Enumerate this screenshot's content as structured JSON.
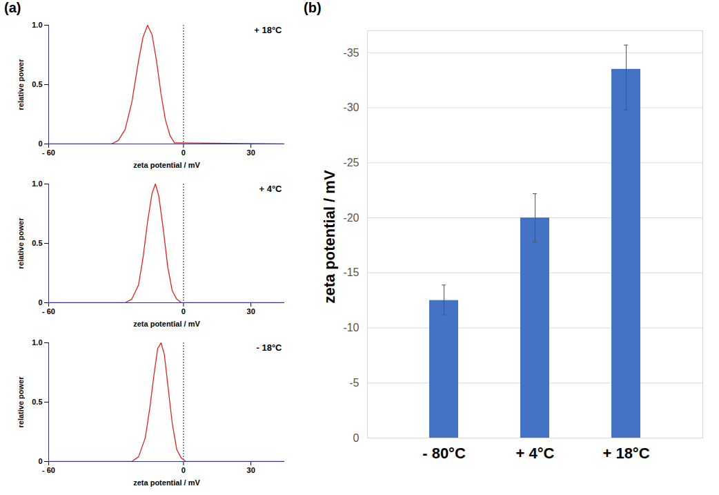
{
  "chart_data": [
    {
      "type": "line",
      "panel_label": "(a)",
      "annotation": "+ 18°C",
      "x_label": "zeta potential / mV",
      "y_label": "relative power",
      "x": [
        -60,
        -32,
        -29,
        -26,
        -23,
        -20,
        -18,
        -16,
        -14,
        -12,
        -10,
        -8,
        -6,
        -4,
        45
      ],
      "values": [
        0,
        0,
        0.03,
        0.12,
        0.35,
        0.7,
        0.9,
        1.0,
        0.92,
        0.7,
        0.42,
        0.2,
        0.07,
        0.01,
        0
      ],
      "color": "#e02020",
      "rule_x": 0,
      "xlim": [
        -60,
        45
      ],
      "xticks": [
        {
          "value": -60,
          "label": "- 60"
        },
        0,
        30
      ],
      "ylim": [
        0,
        1
      ],
      "yticks": [
        0,
        0.5,
        {
          "value": 1,
          "label": "1.0"
        }
      ]
    },
    {
      "type": "line",
      "annotation": "+ 4°C",
      "x_label": "zeta potential / mV",
      "y_label": "relative power",
      "x": [
        -60,
        -26,
        -23,
        -20,
        -18,
        -16,
        -14,
        -12.5,
        -11,
        -9,
        -7,
        -5,
        -3,
        -1,
        45
      ],
      "values": [
        0,
        0,
        0.03,
        0.15,
        0.38,
        0.68,
        0.92,
        1.0,
        0.9,
        0.62,
        0.3,
        0.1,
        0.03,
        0,
        0
      ],
      "color": "#e02020",
      "rule_x": 0,
      "xlim": [
        -60,
        45
      ],
      "xticks": [
        {
          "value": -60,
          "label": "- 60"
        },
        0,
        30
      ],
      "ylim": [
        0,
        1
      ],
      "yticks": [
        0,
        0.5,
        {
          "value": 1,
          "label": "1.0"
        }
      ]
    },
    {
      "type": "line",
      "annotation": "- 18°C",
      "x_label": "zeta potential / mV",
      "y_label": "relative power",
      "x": [
        -60,
        -23,
        -20,
        -17,
        -15,
        -13,
        -11.5,
        -10,
        -8.5,
        -7,
        -5,
        -3,
        -1,
        1,
        45
      ],
      "values": [
        0,
        0,
        0.04,
        0.2,
        0.45,
        0.75,
        0.95,
        1.0,
        0.9,
        0.65,
        0.32,
        0.1,
        0.03,
        0,
        0
      ],
      "color": "#e02020",
      "rule_x": 0,
      "xlim": [
        -60,
        45
      ],
      "xticks": [
        {
          "value": -60,
          "label": "- 60"
        },
        0,
        30
      ],
      "ylim": [
        0,
        1
      ],
      "yticks": [
        0,
        0.5,
        {
          "value": 1,
          "label": "1.0"
        }
      ]
    },
    {
      "type": "bar",
      "panel_label": "(b)",
      "y_label": "zeta potential / mV",
      "categories": [
        "- 80°C",
        "+ 4°C",
        "+ 18°C"
      ],
      "values": [
        -12.5,
        -20,
        -33.5
      ],
      "error_bars": [
        [
          -11.2,
          -13.9
        ],
        [
          -17.8,
          -22.2
        ],
        [
          -29.8,
          -35.7
        ]
      ],
      "color": "#4472c4",
      "grid": true,
      "ylim": [
        0,
        -37
      ],
      "yticks": [
        0,
        -5,
        -10,
        -15,
        -20,
        -25,
        -30,
        -35
      ]
    }
  ]
}
